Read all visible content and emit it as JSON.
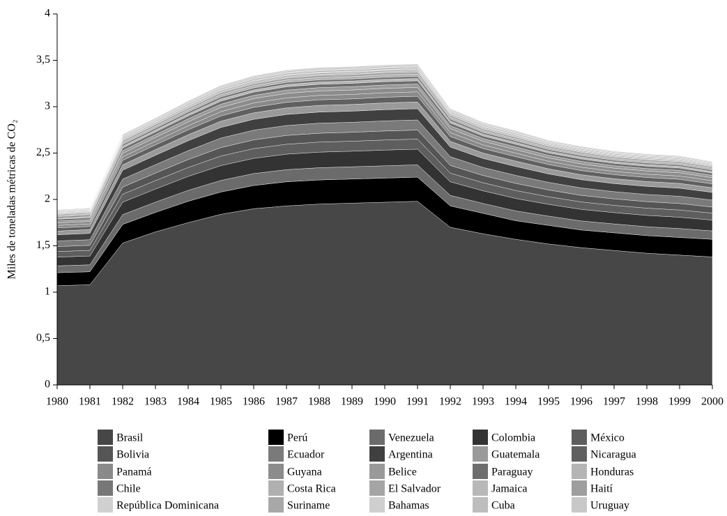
{
  "chart_data": {
    "type": "stacked_area",
    "y_label": "Miles de toneladas métricas de CO₂",
    "categories": [
      "1980",
      "1981",
      "1982",
      "1983",
      "1984",
      "1985",
      "1986",
      "1987",
      "1988",
      "1989",
      "1990",
      "1991",
      "1992",
      "1993",
      "1994",
      "1995",
      "1996",
      "1997",
      "1998",
      "1999",
      "2000"
    ],
    "ylim": [
      0,
      4
    ],
    "yticks": [
      0,
      {
        "value": 0.5,
        "label": "0,5"
      },
      1,
      {
        "value": 1.5,
        "label": "1,5"
      },
      2,
      {
        "value": 2.5,
        "label": "2,5"
      },
      3,
      {
        "value": 3.5,
        "label": "3,5"
      },
      4
    ],
    "series": [
      {
        "name": "Brasil",
        "color": "#474747",
        "values": [
          1.07,
          1.08,
          1.53,
          1.65,
          1.75,
          1.84,
          1.9,
          1.93,
          1.95,
          1.96,
          1.97,
          1.98,
          1.7,
          1.63,
          1.57,
          1.52,
          1.48,
          1.45,
          1.42,
          1.4,
          1.38
        ]
      },
      {
        "name": "Perú",
        "color": "#000000",
        "values": [
          0.14,
          0.14,
          0.2,
          0.21,
          0.23,
          0.24,
          0.25,
          0.26,
          0.26,
          0.26,
          0.26,
          0.26,
          0.23,
          0.22,
          0.2,
          0.2,
          0.19,
          0.19,
          0.19,
          0.19,
          0.19
        ]
      },
      {
        "name": "Venezuela",
        "color": "#6b6b6b",
        "values": [
          0.074,
          0.075,
          0.106,
          0.111,
          0.118,
          0.125,
          0.129,
          0.131,
          0.132,
          0.132,
          0.133,
          0.133,
          0.114,
          0.107,
          0.106,
          0.1,
          0.098,
          0.096,
          0.096,
          0.096,
          0.091
        ]
      },
      {
        "name": "Colombia",
        "color": "#333333",
        "values": [
          0.094,
          0.095,
          0.134,
          0.141,
          0.15,
          0.16,
          0.164,
          0.167,
          0.168,
          0.168,
          0.169,
          0.169,
          0.146,
          0.136,
          0.134,
          0.127,
          0.125,
          0.122,
          0.122,
          0.122,
          0.116
        ]
      },
      {
        "name": "México",
        "color": "#5e5e5e",
        "values": [
          0.06,
          0.061,
          0.086,
          0.091,
          0.096,
          0.103,
          0.105,
          0.107,
          0.108,
          0.108,
          0.109,
          0.109,
          0.094,
          0.087,
          0.086,
          0.082,
          0.08,
          0.078,
          0.078,
          0.078,
          0.075
        ]
      },
      {
        "name": "Bolivia",
        "color": "#555555",
        "values": [
          0.054,
          0.054,
          0.077,
          0.081,
          0.086,
          0.091,
          0.094,
          0.095,
          0.096,
          0.096,
          0.097,
          0.097,
          0.083,
          0.078,
          0.077,
          0.073,
          0.071,
          0.07,
          0.07,
          0.07,
          0.066
        ]
      },
      {
        "name": "Ecuador",
        "color": "#7a7a7a",
        "values": [
          0.06,
          0.061,
          0.086,
          0.091,
          0.096,
          0.103,
          0.105,
          0.107,
          0.108,
          0.108,
          0.109,
          0.109,
          0.094,
          0.087,
          0.086,
          0.082,
          0.08,
          0.078,
          0.078,
          0.078,
          0.075
        ]
      },
      {
        "name": "Argentina",
        "color": "#404040",
        "values": [
          0.067,
          0.068,
          0.096,
          0.101,
          0.107,
          0.114,
          0.117,
          0.119,
          0.12,
          0.12,
          0.121,
          0.121,
          0.104,
          0.097,
          0.096,
          0.091,
          0.089,
          0.087,
          0.087,
          0.087,
          0.083
        ]
      },
      {
        "name": "Guatemala",
        "color": "#9a9a9a",
        "values": [
          0.04,
          0.041,
          0.058,
          0.061,
          0.064,
          0.068,
          0.07,
          0.071,
          0.072,
          0.072,
          0.073,
          0.073,
          0.062,
          0.058,
          0.058,
          0.055,
          0.053,
          0.052,
          0.052,
          0.052,
          0.05
        ]
      },
      {
        "name": "Nicaragua",
        "color": "#606060",
        "values": [
          0.034,
          0.034,
          0.048,
          0.051,
          0.054,
          0.057,
          0.059,
          0.06,
          0.06,
          0.06,
          0.061,
          0.061,
          0.052,
          0.049,
          0.048,
          0.046,
          0.045,
          0.044,
          0.044,
          0.044,
          0.042
        ]
      },
      {
        "name": "Panamá",
        "color": "#8a8a8a",
        "values": [
          0.027,
          0.027,
          0.038,
          0.04,
          0.043,
          0.046,
          0.047,
          0.048,
          0.048,
          0.048,
          0.048,
          0.048,
          0.042,
          0.039,
          0.038,
          0.036,
          0.036,
          0.035,
          0.035,
          0.035,
          0.033
        ]
      },
      {
        "name": "Guyana",
        "color": "#8c8c8c",
        "values": [
          0.027,
          0.027,
          0.038,
          0.04,
          0.043,
          0.046,
          0.047,
          0.048,
          0.048,
          0.048,
          0.048,
          0.048,
          0.042,
          0.039,
          0.038,
          0.036,
          0.036,
          0.035,
          0.035,
          0.035,
          0.033
        ]
      },
      {
        "name": "Belice",
        "color": "#999999",
        "values": [
          0.02,
          0.02,
          0.029,
          0.03,
          0.032,
          0.034,
          0.035,
          0.036,
          0.036,
          0.036,
          0.036,
          0.036,
          0.031,
          0.029,
          0.029,
          0.027,
          0.027,
          0.026,
          0.026,
          0.026,
          0.025
        ]
      },
      {
        "name": "Paraguay",
        "color": "#6e6e6e",
        "values": [
          0.02,
          0.02,
          0.029,
          0.03,
          0.032,
          0.034,
          0.035,
          0.036,
          0.036,
          0.036,
          0.036,
          0.036,
          0.031,
          0.029,
          0.029,
          0.027,
          0.027,
          0.026,
          0.026,
          0.026,
          0.025
        ]
      },
      {
        "name": "Honduras",
        "color": "#b5b5b5",
        "values": [
          0.013,
          0.014,
          0.019,
          0.02,
          0.021,
          0.023,
          0.023,
          0.024,
          0.024,
          0.024,
          0.024,
          0.024,
          0.021,
          0.019,
          0.019,
          0.018,
          0.018,
          0.017,
          0.017,
          0.017,
          0.017
        ]
      },
      {
        "name": "Chile",
        "color": "#777777",
        "values": [
          0.013,
          0.014,
          0.019,
          0.02,
          0.021,
          0.023,
          0.023,
          0.024,
          0.024,
          0.024,
          0.024,
          0.024,
          0.021,
          0.019,
          0.019,
          0.018,
          0.018,
          0.017,
          0.017,
          0.017,
          0.017
        ]
      },
      {
        "name": "Costa Rica",
        "color": "#b0b0b0",
        "values": [
          0.013,
          0.014,
          0.019,
          0.02,
          0.021,
          0.023,
          0.023,
          0.024,
          0.024,
          0.024,
          0.024,
          0.024,
          0.021,
          0.019,
          0.019,
          0.018,
          0.018,
          0.017,
          0.017,
          0.017,
          0.017
        ]
      },
      {
        "name": "El Salvador",
        "color": "#a5a5a5",
        "values": [
          0.013,
          0.014,
          0.019,
          0.02,
          0.021,
          0.023,
          0.023,
          0.024,
          0.024,
          0.024,
          0.024,
          0.024,
          0.021,
          0.019,
          0.019,
          0.018,
          0.018,
          0.017,
          0.017,
          0.017,
          0.017
        ]
      },
      {
        "name": "Jamaica",
        "color": "#b8b8b8",
        "values": [
          0.007,
          0.007,
          0.01,
          0.01,
          0.011,
          0.011,
          0.012,
          0.012,
          0.012,
          0.012,
          0.012,
          0.012,
          0.01,
          0.01,
          0.01,
          0.009,
          0.009,
          0.009,
          0.009,
          0.009,
          0.008
        ]
      },
      {
        "name": "Haití",
        "color": "#9e9e9e",
        "values": [
          0.007,
          0.007,
          0.01,
          0.01,
          0.011,
          0.011,
          0.012,
          0.012,
          0.012,
          0.012,
          0.012,
          0.012,
          0.01,
          0.01,
          0.01,
          0.009,
          0.009,
          0.009,
          0.009,
          0.009,
          0.008
        ]
      },
      {
        "name": "República Dominicana",
        "color": "#d0d0d0",
        "values": [
          0.007,
          0.007,
          0.01,
          0.01,
          0.011,
          0.011,
          0.012,
          0.012,
          0.012,
          0.012,
          0.012,
          0.012,
          0.01,
          0.01,
          0.01,
          0.009,
          0.009,
          0.009,
          0.009,
          0.009,
          0.008
        ]
      },
      {
        "name": "Suriname",
        "color": "#a8a8a8",
        "values": [
          0.007,
          0.007,
          0.01,
          0.01,
          0.011,
          0.011,
          0.012,
          0.012,
          0.012,
          0.012,
          0.012,
          0.012,
          0.01,
          0.01,
          0.01,
          0.009,
          0.009,
          0.009,
          0.009,
          0.009,
          0.008
        ]
      },
      {
        "name": "Bahamas",
        "color": "#cfcfcf",
        "values": [
          0.007,
          0.007,
          0.01,
          0.01,
          0.011,
          0.011,
          0.012,
          0.012,
          0.012,
          0.012,
          0.012,
          0.012,
          0.01,
          0.01,
          0.01,
          0.009,
          0.009,
          0.009,
          0.009,
          0.009,
          0.008
        ]
      },
      {
        "name": "Cuba",
        "color": "#bdbdbd",
        "values": [
          0.007,
          0.007,
          0.01,
          0.01,
          0.011,
          0.011,
          0.012,
          0.012,
          0.012,
          0.012,
          0.012,
          0.012,
          0.01,
          0.01,
          0.01,
          0.009,
          0.009,
          0.009,
          0.009,
          0.009,
          0.008
        ]
      },
      {
        "name": "Uruguay",
        "color": "#c8c8c8",
        "values": [
          0.007,
          0.007,
          0.01,
          0.01,
          0.011,
          0.011,
          0.012,
          0.012,
          0.012,
          0.012,
          0.012,
          0.012,
          0.01,
          0.01,
          0.01,
          0.009,
          0.009,
          0.009,
          0.009,
          0.009,
          0.008
        ]
      }
    ]
  }
}
